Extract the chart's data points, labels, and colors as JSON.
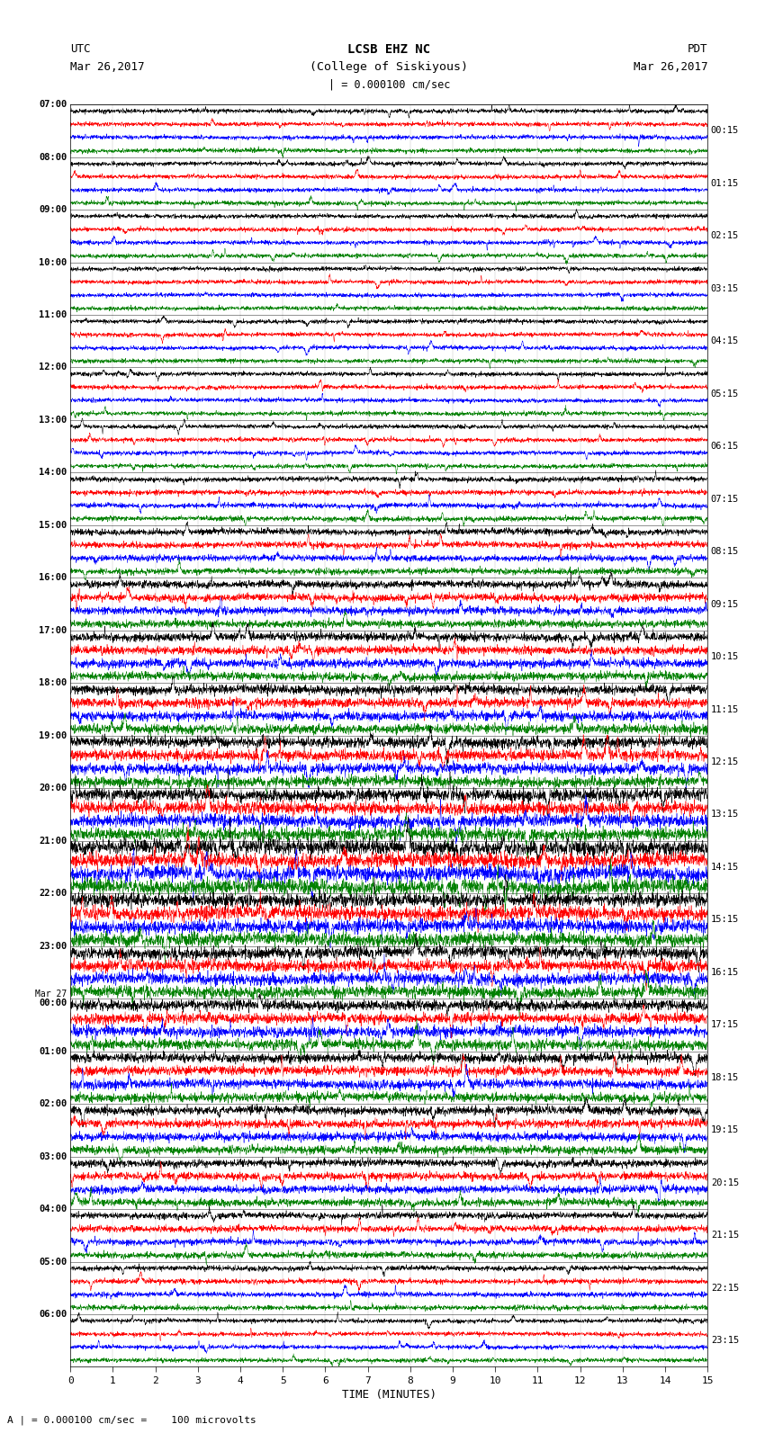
{
  "title_line1": "LCSB EHZ NC",
  "title_line2": "(College of Siskiyous)",
  "scale_label": "| = 0.000100 cm/sec",
  "utc_label": "UTC",
  "utc_date": "Mar 26,2017",
  "pdt_label": "PDT",
  "pdt_date": "Mar 26,2017",
  "footer": "A | = 0.000100 cm/sec =    100 microvolts",
  "xlabel": "TIME (MINUTES)",
  "bg_color": "#ffffff",
  "trace_colors": [
    "black",
    "red",
    "blue",
    "green"
  ],
  "left_times_utc": [
    "07:00",
    "08:00",
    "09:00",
    "10:00",
    "11:00",
    "12:00",
    "13:00",
    "14:00",
    "15:00",
    "16:00",
    "17:00",
    "18:00",
    "19:00",
    "20:00",
    "21:00",
    "22:00",
    "23:00",
    "Mar 27\n00:00",
    "01:00",
    "02:00",
    "03:00",
    "04:00",
    "05:00",
    "06:00"
  ],
  "right_times_pdt": [
    "00:15",
    "01:15",
    "02:15",
    "03:15",
    "04:15",
    "05:15",
    "06:15",
    "07:15",
    "08:15",
    "09:15",
    "10:15",
    "11:15",
    "12:15",
    "13:15",
    "14:15",
    "15:15",
    "16:15",
    "17:15",
    "18:15",
    "19:15",
    "20:15",
    "21:15",
    "22:15",
    "23:15"
  ],
  "n_hour_groups": 24,
  "n_traces_per_group": 4,
  "num_cols": 3000,
  "xmin": 0,
  "xmax": 15,
  "xticks": [
    0,
    1,
    2,
    3,
    4,
    5,
    6,
    7,
    8,
    9,
    10,
    11,
    12,
    13,
    14,
    15
  ],
  "amp_profile": [
    1.0,
    1.0,
    1.0,
    1.0,
    1.0,
    1.0,
    1.0,
    1.2,
    1.5,
    1.8,
    2.0,
    2.2,
    2.5,
    3.0,
    3.5,
    3.2,
    2.8,
    2.5,
    2.2,
    2.0,
    1.8,
    1.5,
    1.2,
    1.0
  ]
}
